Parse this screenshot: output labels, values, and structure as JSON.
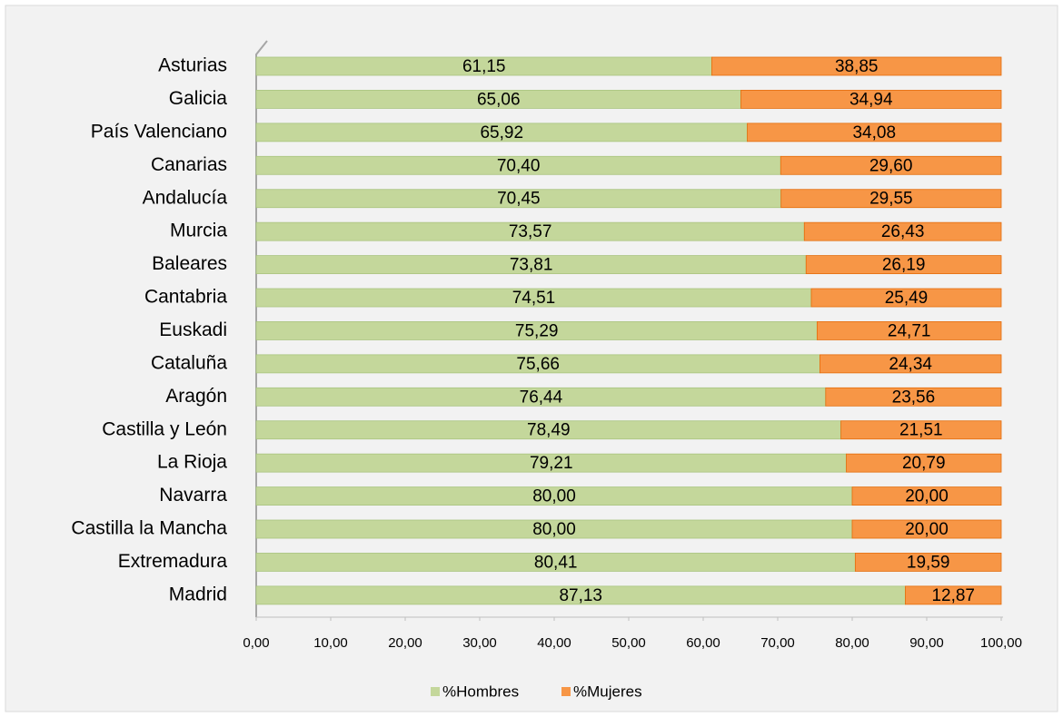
{
  "chart_data": {
    "type": "stacked_bar_horizontal",
    "categories": [
      "Asturias",
      "Galicia",
      "País Valenciano",
      "Canarias",
      "Andalucía",
      "Murcia",
      "Baleares",
      "Cantabria",
      "Euskadi",
      "Cataluña",
      "Aragón",
      "Castilla y León",
      "La Rioja",
      "Navarra",
      "Castilla la Mancha",
      "Extremadura",
      "Madrid"
    ],
    "series": [
      {
        "name": "%Hombres",
        "color": "#c4d79b",
        "values": [
          61.15,
          65.06,
          65.92,
          70.4,
          70.45,
          73.57,
          73.81,
          74.51,
          75.29,
          75.66,
          76.44,
          78.49,
          79.21,
          80.0,
          80.0,
          80.41,
          87.13
        ],
        "value_labels": [
          "61,15",
          "65,06",
          "65,92",
          "70,40",
          "70,45",
          "73,57",
          "73,81",
          "74,51",
          "75,29",
          "75,66",
          "76,44",
          "78,49",
          "79,21",
          "80,00",
          "80,00",
          "80,41",
          "87,13"
        ]
      },
      {
        "name": "%Mujeres",
        "color": "#f79646",
        "values": [
          38.85,
          34.94,
          34.08,
          29.6,
          29.55,
          26.43,
          26.19,
          25.49,
          24.71,
          24.34,
          23.56,
          21.51,
          20.79,
          20.0,
          20.0,
          19.59,
          12.87
        ],
        "value_labels": [
          "38,85",
          "34,94",
          "34,08",
          "29,60",
          "29,55",
          "26,43",
          "26,19",
          "25,49",
          "24,71",
          "24,34",
          "23,56",
          "21,51",
          "20,79",
          "20,00",
          "20,00",
          "19,59",
          "12,87"
        ]
      }
    ],
    "xlim": [
      0,
      100
    ],
    "xticks": [
      {
        "value": 0,
        "label": "0,00"
      },
      {
        "value": 10,
        "label": "10,00"
      },
      {
        "value": 20,
        "label": "20,00"
      },
      {
        "value": 30,
        "label": "30,00"
      },
      {
        "value": 40,
        "label": "40,00"
      },
      {
        "value": 50,
        "label": "50,00"
      },
      {
        "value": 60,
        "label": "60,00"
      },
      {
        "value": 70,
        "label": "70,00"
      },
      {
        "value": 80,
        "label": "80,00"
      },
      {
        "value": 90,
        "label": "90,00"
      },
      {
        "value": 100,
        "label": "100,00"
      }
    ],
    "legend": "bottom"
  }
}
